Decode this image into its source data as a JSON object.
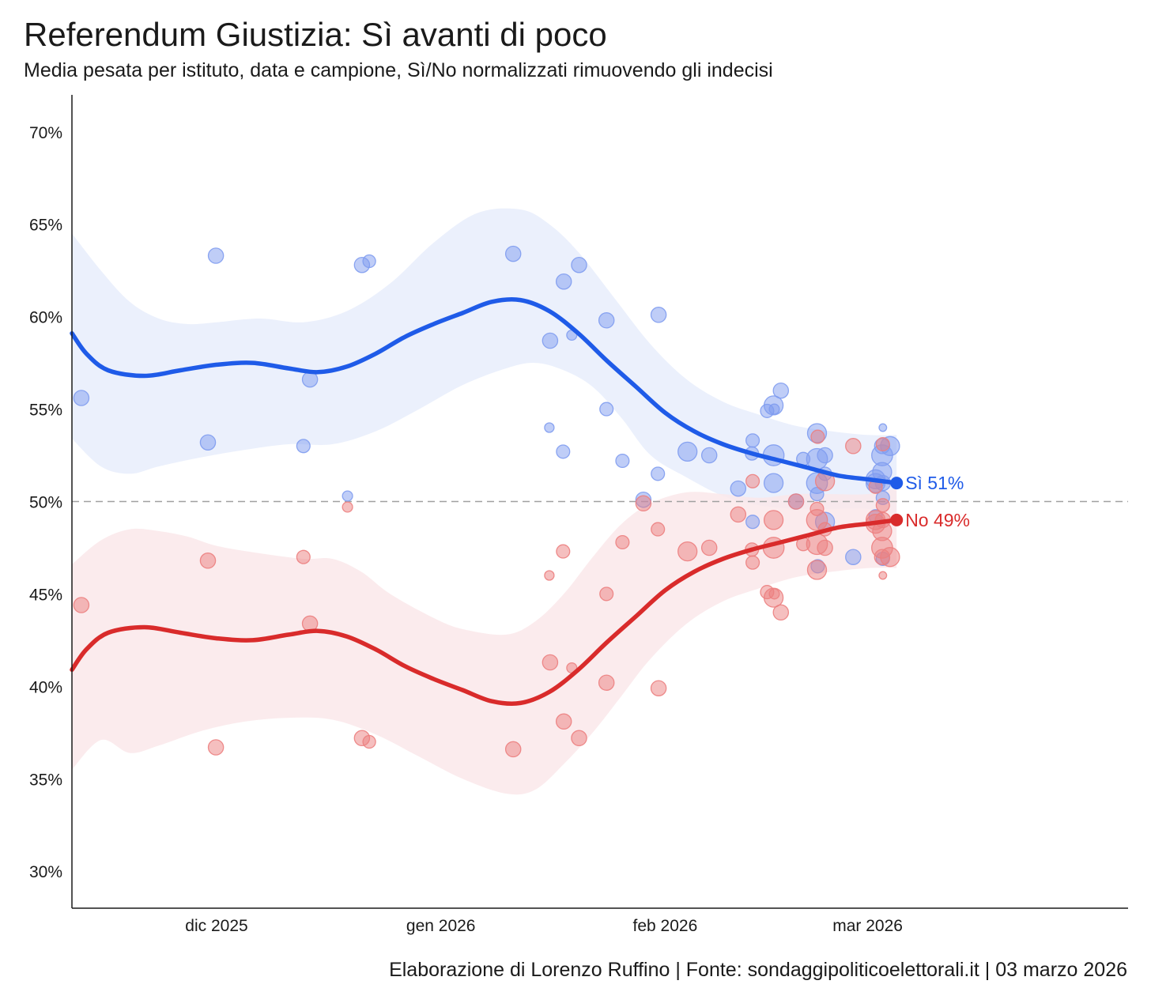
{
  "title": "Referendum Giustizia: Sì avanti di poco",
  "subtitle": "Media pesata per istituto, data e campione, Sì/No normalizzati rimuovendo gli indecisi",
  "caption": "Elaborazione di Lorenzo Ruffino | Fonte: sondaggipoliticoelettorali.it | 03 marzo 2026",
  "colors": {
    "si": "#1f5be8",
    "no": "#d92b2b",
    "si_band": "#e8edfb",
    "no_band": "#fae8ea",
    "si_point": "#7f9cf0",
    "no_point": "#ec7f80",
    "reference": "#a0a0a0",
    "axis": "#1a1a1a"
  },
  "chart_data": {
    "type": "scatter",
    "x_unit": "days since 2025-11-01",
    "xlim": [
      10,
      156
    ],
    "ylim": [
      28,
      72
    ],
    "y_ticks": [
      30,
      35,
      40,
      45,
      50,
      55,
      60,
      65,
      70
    ],
    "y_tick_labels": [
      "30%",
      "35%",
      "40%",
      "45%",
      "50%",
      "55%",
      "60%",
      "65%",
      "70%"
    ],
    "x_ticks": [
      30,
      61,
      92,
      120
    ],
    "x_tick_labels": [
      "dic 2025",
      "gen 2026",
      "feb 2026",
      "mar 2026"
    ],
    "reference_line": 50,
    "series": [
      {
        "name": "Sì",
        "end_label": "Sì 51%",
        "end_value": 51,
        "smooth": [
          [
            10,
            59.1
          ],
          [
            12,
            58
          ],
          [
            15,
            57.1
          ],
          [
            20,
            56.8
          ],
          [
            25,
            57.1
          ],
          [
            30,
            57.4
          ],
          [
            35,
            57.5
          ],
          [
            40,
            57.2
          ],
          [
            44,
            57
          ],
          [
            48,
            57.3
          ],
          [
            52,
            58
          ],
          [
            56,
            58.9
          ],
          [
            60,
            59.6
          ],
          [
            64,
            60.2
          ],
          [
            68,
            60.8
          ],
          [
            72,
            60.9
          ],
          [
            76,
            60.3
          ],
          [
            80,
            59.1
          ],
          [
            84,
            57.6
          ],
          [
            88,
            56.2
          ],
          [
            92,
            54.8
          ],
          [
            96,
            53.8
          ],
          [
            100,
            53.1
          ],
          [
            104,
            52.6
          ],
          [
            108,
            52.2
          ],
          [
            112,
            51.8
          ],
          [
            116,
            51.4
          ],
          [
            120,
            51.2
          ],
          [
            124,
            51
          ]
        ],
        "band_upper": [
          [
            10,
            64.5
          ],
          [
            14,
            62.5
          ],
          [
            18,
            60.8
          ],
          [
            22,
            59.9
          ],
          [
            26,
            59.6
          ],
          [
            30,
            59.7
          ],
          [
            36,
            59.9
          ],
          [
            42,
            59.7
          ],
          [
            48,
            60.3
          ],
          [
            54,
            61.8
          ],
          [
            60,
            64
          ],
          [
            66,
            65.6
          ],
          [
            72,
            65.8
          ],
          [
            76,
            65
          ],
          [
            80,
            63.5
          ],
          [
            85,
            61
          ],
          [
            90,
            58.5
          ],
          [
            95,
            56.6
          ],
          [
            100,
            55.4
          ],
          [
            105,
            54.7
          ],
          [
            110,
            54.1
          ],
          [
            115,
            53.8
          ],
          [
            120,
            53.6
          ],
          [
            124,
            53.6
          ]
        ],
        "band_lower": [
          [
            124,
            49.3
          ],
          [
            120,
            49.6
          ],
          [
            115,
            49.6
          ],
          [
            110,
            49.6
          ],
          [
            105,
            49.8
          ],
          [
            100,
            50.3
          ],
          [
            95,
            51.3
          ],
          [
            90,
            52.5
          ],
          [
            86,
            54.5
          ],
          [
            82,
            56.2
          ],
          [
            78,
            57.1
          ],
          [
            74,
            57.5
          ],
          [
            70,
            57.2
          ],
          [
            64,
            56.3
          ],
          [
            58,
            55
          ],
          [
            52,
            53.8
          ],
          [
            46,
            53.1
          ],
          [
            40,
            53.1
          ],
          [
            34,
            52.8
          ],
          [
            28,
            52.4
          ],
          [
            22,
            51.9
          ],
          [
            18,
            51.5
          ],
          [
            14,
            51.9
          ],
          [
            10,
            53.4
          ]
        ],
        "points": [
          [
            11.3,
            55.6,
            2.4
          ],
          [
            28.8,
            53.2,
            2.4
          ],
          [
            29.9,
            63.3,
            2.4
          ],
          [
            42,
            53,
            2.1
          ],
          [
            42.9,
            56.6,
            2.4
          ],
          [
            48.1,
            50.3,
            1.6
          ],
          [
            50.1,
            62.8,
            2.4
          ],
          [
            51.1,
            63,
            2
          ],
          [
            71,
            63.4,
            2.4
          ],
          [
            76.1,
            58.7,
            2.4
          ],
          [
            76,
            54,
            1.5
          ],
          [
            78,
            61.9,
            2.4
          ],
          [
            77.9,
            52.7,
            2.1
          ],
          [
            79.1,
            59,
            1.6
          ],
          [
            80.1,
            62.8,
            2.4
          ],
          [
            83.9,
            59.8,
            2.4
          ],
          [
            83.9,
            55,
            2.1
          ],
          [
            86.1,
            52.2,
            2.1
          ],
          [
            89,
            50.1,
            2.4
          ],
          [
            91.1,
            60.1,
            2.4
          ],
          [
            91,
            51.5,
            2.1
          ],
          [
            95.1,
            52.7,
            3
          ],
          [
            98.1,
            52.5,
            2.4
          ],
          [
            102.1,
            50.7,
            2.4
          ],
          [
            104.1,
            53.3,
            2.1
          ],
          [
            104,
            52.6,
            2.1
          ],
          [
            104.1,
            48.9,
            2.1
          ],
          [
            106.1,
            54.9,
            2.1
          ],
          [
            107.1,
            55,
            1.6
          ],
          [
            107,
            55.2,
            3
          ],
          [
            107,
            52.5,
            3.3
          ],
          [
            107,
            51,
            3
          ],
          [
            108,
            56,
            2.4
          ],
          [
            110.1,
            50,
            2.4
          ],
          [
            111.1,
            52.3,
            2.1
          ],
          [
            113,
            53.7,
            3
          ],
          [
            113,
            52.3,
            3.3
          ],
          [
            113,
            51,
            3.3
          ],
          [
            113,
            50.4,
            2.1
          ],
          [
            113.1,
            46.5,
            2.1
          ],
          [
            114.1,
            52.5,
            2.4
          ],
          [
            114.1,
            51.5,
            2.1
          ],
          [
            114.1,
            48.9,
            3
          ],
          [
            118,
            47,
            2.4
          ],
          [
            121.1,
            49.2,
            2.1
          ],
          [
            121.1,
            51,
            3
          ],
          [
            121.1,
            51.2,
            3
          ],
          [
            122.1,
            54,
            1.2
          ],
          [
            122,
            53,
            2.4
          ],
          [
            122,
            52.5,
            3.3
          ],
          [
            122,
            51.6,
            3
          ],
          [
            122.1,
            51,
            2.4
          ],
          [
            122.1,
            50.2,
            2.1
          ],
          [
            122.1,
            46.9,
            2.1
          ],
          [
            123.1,
            53,
            3
          ]
        ]
      },
      {
        "name": "No",
        "end_label": "No 49%",
        "end_value": 49,
        "smooth": [
          [
            10,
            40.9
          ],
          [
            12,
            42
          ],
          [
            15,
            42.9
          ],
          [
            20,
            43.2
          ],
          [
            25,
            42.9
          ],
          [
            30,
            42.6
          ],
          [
            35,
            42.5
          ],
          [
            40,
            42.8
          ],
          [
            44,
            43
          ],
          [
            48,
            42.7
          ],
          [
            52,
            42
          ],
          [
            56,
            41.1
          ],
          [
            60,
            40.4
          ],
          [
            64,
            39.8
          ],
          [
            68,
            39.2
          ],
          [
            72,
            39.1
          ],
          [
            76,
            39.7
          ],
          [
            80,
            40.9
          ],
          [
            84,
            42.4
          ],
          [
            88,
            43.8
          ],
          [
            92,
            45.2
          ],
          [
            96,
            46.2
          ],
          [
            100,
            46.9
          ],
          [
            104,
            47.4
          ],
          [
            108,
            47.8
          ],
          [
            112,
            48.2
          ],
          [
            116,
            48.6
          ],
          [
            120,
            48.8
          ],
          [
            124,
            49
          ]
        ],
        "band_upper": [
          [
            10,
            46.6
          ],
          [
            14,
            47.9
          ],
          [
            18,
            48.5
          ],
          [
            22,
            48.4
          ],
          [
            26,
            48.1
          ],
          [
            30,
            47.6
          ],
          [
            36,
            47.2
          ],
          [
            42,
            46.9
          ],
          [
            46,
            46.9
          ],
          [
            50,
            46.2
          ],
          [
            54,
            45
          ],
          [
            60,
            43.7
          ],
          [
            64,
            43.1
          ],
          [
            70,
            42.8
          ],
          [
            74,
            43.5
          ],
          [
            78,
            45
          ],
          [
            82,
            47
          ],
          [
            86,
            48.8
          ],
          [
            90,
            49.9
          ],
          [
            95,
            50.5
          ],
          [
            100,
            50.4
          ],
          [
            105,
            50.2
          ],
          [
            110,
            50.4
          ],
          [
            115,
            50.4
          ],
          [
            120,
            50.4
          ],
          [
            124,
            50.7
          ]
        ],
        "band_lower": [
          [
            124,
            46.4
          ],
          [
            120,
            46.4
          ],
          [
            115,
            46.2
          ],
          [
            110,
            45.9
          ],
          [
            105,
            45.3
          ],
          [
            100,
            44.6
          ],
          [
            95,
            43.4
          ],
          [
            90,
            41.5
          ],
          [
            86,
            39.5
          ],
          [
            82,
            37.5
          ],
          [
            78,
            35.8
          ],
          [
            74,
            34.4
          ],
          [
            70,
            34.2
          ],
          [
            64,
            35
          ],
          [
            58,
            36.2
          ],
          [
            52,
            37.4
          ],
          [
            46,
            38.2
          ],
          [
            40,
            38.3
          ],
          [
            34,
            38.1
          ],
          [
            28,
            37.6
          ],
          [
            22,
            36.8
          ],
          [
            18,
            36.4
          ],
          [
            14,
            37.1
          ],
          [
            10,
            35.5
          ]
        ],
        "points": [
          [
            11.3,
            44.4,
            2.4
          ],
          [
            28.8,
            46.8,
            2.4
          ],
          [
            29.9,
            36.7,
            2.4
          ],
          [
            42,
            47,
            2.1
          ],
          [
            42.9,
            43.4,
            2.4
          ],
          [
            48.1,
            49.7,
            1.6
          ],
          [
            50.1,
            37.2,
            2.4
          ],
          [
            51.1,
            37,
            2
          ],
          [
            71,
            36.6,
            2.4
          ],
          [
            76.1,
            41.3,
            2.4
          ],
          [
            76,
            46,
            1.5
          ],
          [
            78,
            38.1,
            2.4
          ],
          [
            77.9,
            47.3,
            2.1
          ],
          [
            79.1,
            41,
            1.6
          ],
          [
            80.1,
            37.2,
            2.4
          ],
          [
            83.9,
            40.2,
            2.4
          ],
          [
            83.9,
            45,
            2.1
          ],
          [
            86.1,
            47.8,
            2.1
          ],
          [
            89,
            49.9,
            2.4
          ],
          [
            91.1,
            39.9,
            2.4
          ],
          [
            91,
            48.5,
            2.1
          ],
          [
            95.1,
            47.3,
            3
          ],
          [
            98.1,
            47.5,
            2.4
          ],
          [
            102.1,
            49.3,
            2.4
          ],
          [
            104.1,
            46.7,
            2.1
          ],
          [
            104,
            47.4,
            2.1
          ],
          [
            104.1,
            51.1,
            2.1
          ],
          [
            106.1,
            45.1,
            2.1
          ],
          [
            107.1,
            45,
            1.6
          ],
          [
            107,
            44.8,
            3
          ],
          [
            107,
            47.5,
            3.3
          ],
          [
            107,
            49,
            3
          ],
          [
            108,
            44,
            2.4
          ],
          [
            110.1,
            50,
            2.4
          ],
          [
            111.1,
            47.7,
            2.1
          ],
          [
            113,
            46.3,
            3
          ],
          [
            113,
            47.7,
            3.3
          ],
          [
            113,
            49,
            3.3
          ],
          [
            113,
            49.6,
            2.1
          ],
          [
            113.1,
            53.5,
            2.1
          ],
          [
            114.1,
            47.5,
            2.4
          ],
          [
            114.1,
            48.5,
            2.1
          ],
          [
            114.1,
            51.1,
            3
          ],
          [
            118,
            53,
            2.4
          ],
          [
            121.1,
            50.8,
            2.1
          ],
          [
            121.1,
            49,
            3
          ],
          [
            121.1,
            48.8,
            3
          ],
          [
            122.1,
            46,
            1.2
          ],
          [
            122,
            47,
            2.4
          ],
          [
            122,
            47.5,
            3.3
          ],
          [
            122,
            48.4,
            3
          ],
          [
            122.1,
            49,
            2.4
          ],
          [
            122.1,
            49.8,
            2.1
          ],
          [
            122.1,
            53.1,
            2.1
          ],
          [
            123.1,
            47,
            3
          ]
        ]
      }
    ]
  }
}
